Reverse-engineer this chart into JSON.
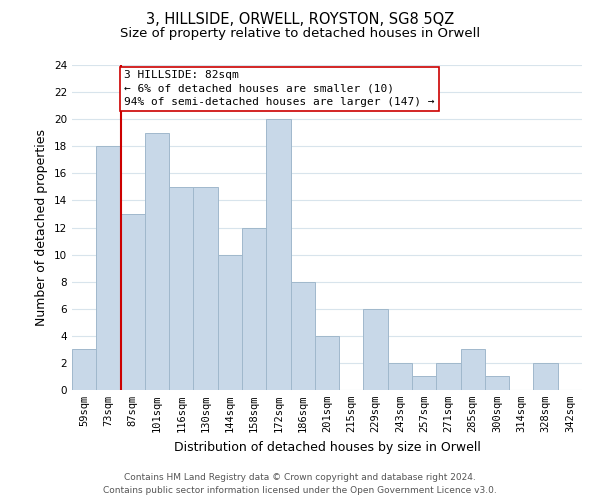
{
  "title": "3, HILLSIDE, ORWELL, ROYSTON, SG8 5QZ",
  "subtitle": "Size of property relative to detached houses in Orwell",
  "xlabel": "Distribution of detached houses by size in Orwell",
  "ylabel": "Number of detached properties",
  "bin_labels": [
    "59sqm",
    "73sqm",
    "87sqm",
    "101sqm",
    "116sqm",
    "130sqm",
    "144sqm",
    "158sqm",
    "172sqm",
    "186sqm",
    "201sqm",
    "215sqm",
    "229sqm",
    "243sqm",
    "257sqm",
    "271sqm",
    "285sqm",
    "300sqm",
    "314sqm",
    "328sqm",
    "342sqm"
  ],
  "bar_heights": [
    3,
    18,
    13,
    19,
    15,
    15,
    10,
    12,
    20,
    8,
    4,
    0,
    6,
    2,
    1,
    2,
    3,
    1,
    0,
    2,
    0
  ],
  "bar_color": "#c8d8e8",
  "bar_edge_color": "#a0b8cc",
  "vline_x_index": 2,
  "vline_color": "#cc0000",
  "annotation_text": "3 HILLSIDE: 82sqm\n← 6% of detached houses are smaller (10)\n94% of semi-detached houses are larger (147) →",
  "annotation_box_color": "#ffffff",
  "annotation_box_edge_color": "#cc0000",
  "ylim": [
    0,
    24
  ],
  "yticks": [
    0,
    2,
    4,
    6,
    8,
    10,
    12,
    14,
    16,
    18,
    20,
    22,
    24
  ],
  "grid_color": "#d8e4ec",
  "footer_line1": "Contains HM Land Registry data © Crown copyright and database right 2024.",
  "footer_line2": "Contains public sector information licensed under the Open Government Licence v3.0.",
  "title_fontsize": 10.5,
  "subtitle_fontsize": 9.5,
  "xlabel_fontsize": 9,
  "ylabel_fontsize": 9,
  "tick_fontsize": 7.5,
  "annotation_fontsize": 8,
  "footer_fontsize": 6.5
}
